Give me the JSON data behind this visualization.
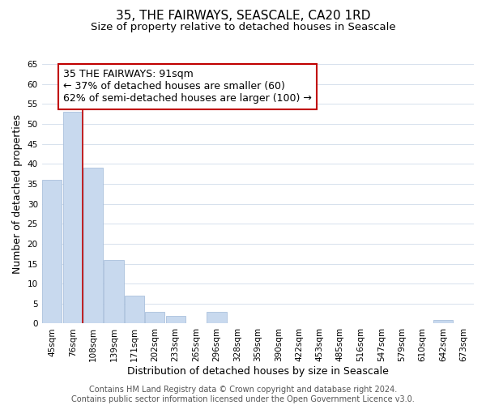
{
  "title": "35, THE FAIRWAYS, SEASCALE, CA20 1RD",
  "subtitle": "Size of property relative to detached houses in Seascale",
  "xlabel": "Distribution of detached houses by size in Seascale",
  "ylabel": "Number of detached properties",
  "bin_labels": [
    "45sqm",
    "76sqm",
    "108sqm",
    "139sqm",
    "171sqm",
    "202sqm",
    "233sqm",
    "265sqm",
    "296sqm",
    "328sqm",
    "359sqm",
    "390sqm",
    "422sqm",
    "453sqm",
    "485sqm",
    "516sqm",
    "547sqm",
    "579sqm",
    "610sqm",
    "642sqm",
    "673sqm"
  ],
  "bar_heights": [
    36,
    53,
    39,
    16,
    7,
    3,
    2,
    0,
    3,
    0,
    0,
    0,
    0,
    0,
    0,
    0,
    0,
    0,
    0,
    1,
    0
  ],
  "bar_color": "#c8d9ee",
  "bar_edge_color": "#aac0dc",
  "vline_x": 1.5,
  "vline_color": "#c00000",
  "ylim": [
    0,
    65
  ],
  "yticks": [
    0,
    5,
    10,
    15,
    20,
    25,
    30,
    35,
    40,
    45,
    50,
    55,
    60,
    65
  ],
  "annotation_title": "35 THE FAIRWAYS: 91sqm",
  "annotation_line1": "← 37% of detached houses are smaller (60)",
  "annotation_line2": "62% of semi-detached houses are larger (100) →",
  "annotation_box_edge": "#c00000",
  "footer_line1": "Contains HM Land Registry data © Crown copyright and database right 2024.",
  "footer_line2": "Contains public sector information licensed under the Open Government Licence v3.0.",
  "title_fontsize": 11,
  "subtitle_fontsize": 9.5,
  "axis_label_fontsize": 9,
  "tick_fontsize": 7.5,
  "annotation_fontsize": 9,
  "footer_fontsize": 7
}
